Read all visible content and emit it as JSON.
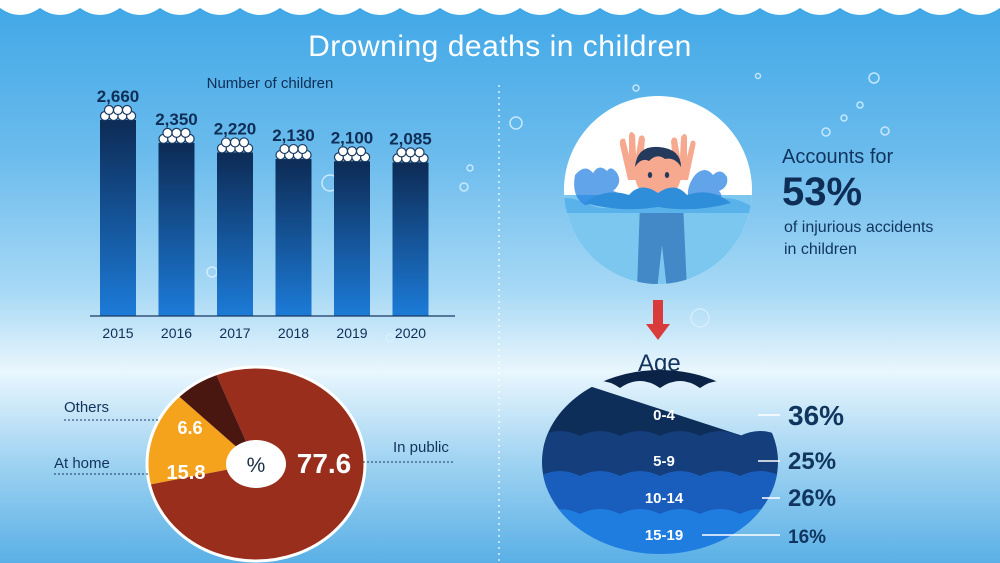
{
  "title": "Drowning deaths in children",
  "colors": {
    "bar_top": "#0d2b55",
    "bar_bottom": "#1c7bd8",
    "in_public": "#9a2e1c",
    "at_home": "#f5a21c",
    "others": "#4a1710",
    "age_0_4": "#0e2e5a",
    "age_5_9": "#143e7c",
    "age_10_14": "#1a5ebd",
    "age_15_19": "#1f7de0"
  },
  "chart_data": [
    {
      "type": "bar",
      "title": "Number of children",
      "categories": [
        "2015",
        "2016",
        "2017",
        "2018",
        "2019",
        "2020"
      ],
      "values": [
        2660,
        2350,
        2220,
        2130,
        2100,
        2085
      ],
      "value_labels": [
        "2,660",
        "2,350",
        "2,220",
        "2,130",
        "2,100",
        "2,085"
      ],
      "xlabel": "",
      "ylabel": "",
      "ylim": [
        0,
        2800
      ]
    },
    {
      "type": "pie",
      "title": "",
      "center_label": "%",
      "slices": [
        {
          "name": "In public",
          "value": 77.6,
          "label": "77.6"
        },
        {
          "name": "At home",
          "value": 15.8,
          "label": "15.8"
        },
        {
          "name": "Others",
          "value": 6.6,
          "label": "6.6"
        }
      ]
    },
    {
      "type": "bar",
      "title": "Age",
      "categories": [
        "0-4",
        "5-9",
        "10-14",
        "15-19"
      ],
      "values": [
        36,
        25,
        26,
        16
      ],
      "value_labels": [
        "36%",
        "25%",
        "26%",
        "16%"
      ]
    }
  ],
  "accounts": {
    "prefix": "Accounts for",
    "percent": "53%",
    "line1": "of injurious accidents",
    "line2": "in children"
  },
  "icons": [
    "drowning-child-icon",
    "down-arrow-icon",
    "children-group-icon"
  ]
}
